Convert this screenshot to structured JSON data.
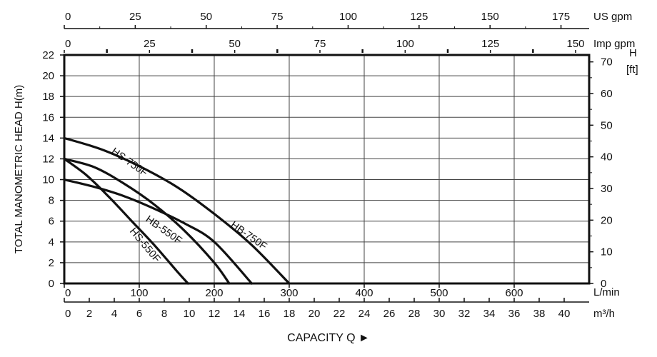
{
  "chart_data": {
    "type": "line",
    "title": "",
    "xlabel": "CAPACITY Q ►",
    "ylabel": "TOTAL MANOMETRIC HEAD  H(m)",
    "grid": true,
    "x_unit_label": "L/min",
    "xlim": [
      0,
      700
    ],
    "ylim": [
      0,
      22
    ],
    "x_ticks": [
      "0",
      "100",
      "200",
      "300",
      "400",
      "500",
      "600"
    ],
    "y_ticks": [
      "0",
      "2",
      "4",
      "6",
      "8",
      "10",
      "12",
      "14",
      "16",
      "18",
      "20",
      "22"
    ],
    "secondary_axes": {
      "m3h": {
        "label": "m³/h",
        "ticks": [
          "0",
          "2",
          "4",
          "6",
          "8",
          "10",
          "12",
          "14",
          "16",
          "18",
          "20",
          "22",
          "24",
          "26",
          "28",
          "30",
          "32",
          "34",
          "36",
          "38",
          "40"
        ]
      },
      "us_gpm": {
        "label": "US gpm",
        "ticks": [
          "0",
          "25",
          "50",
          "75",
          "100",
          "125",
          "150",
          "175"
        ]
      },
      "imp_gpm": {
        "label": "Imp gpm",
        "ticks": [
          "0",
          "25",
          "50",
          "75",
          "100",
          "125",
          "150"
        ]
      },
      "head_ft": {
        "label_line1": "H",
        "label_line2": "[ft]",
        "ticks": [
          "0",
          "10",
          "20",
          "30",
          "40",
          "50",
          "60",
          "70"
        ]
      }
    },
    "series": [
      {
        "name": "HS-750F",
        "x": [
          0,
          40,
          80,
          120,
          160,
          200,
          220
        ],
        "y": [
          12,
          11.2,
          9.6,
          7.6,
          5.1,
          2.0,
          0
        ]
      },
      {
        "name": "HB-750F",
        "x": [
          0,
          50,
          100,
          150,
          200,
          250,
          300
        ],
        "y": [
          14,
          12.9,
          11.3,
          9.3,
          6.7,
          3.7,
          0
        ]
      },
      {
        "name": "HS-550F",
        "x": [
          0,
          30,
          60,
          90,
          120,
          150,
          165
        ],
        "y": [
          12,
          10.4,
          8.3,
          6.0,
          3.7,
          1.2,
          0
        ]
      },
      {
        "name": "HB-550F",
        "x": [
          0,
          40,
          80,
          120,
          160,
          200,
          250
        ],
        "y": [
          10,
          9.3,
          8.4,
          7.2,
          5.8,
          4.0,
          0
        ]
      }
    ]
  }
}
